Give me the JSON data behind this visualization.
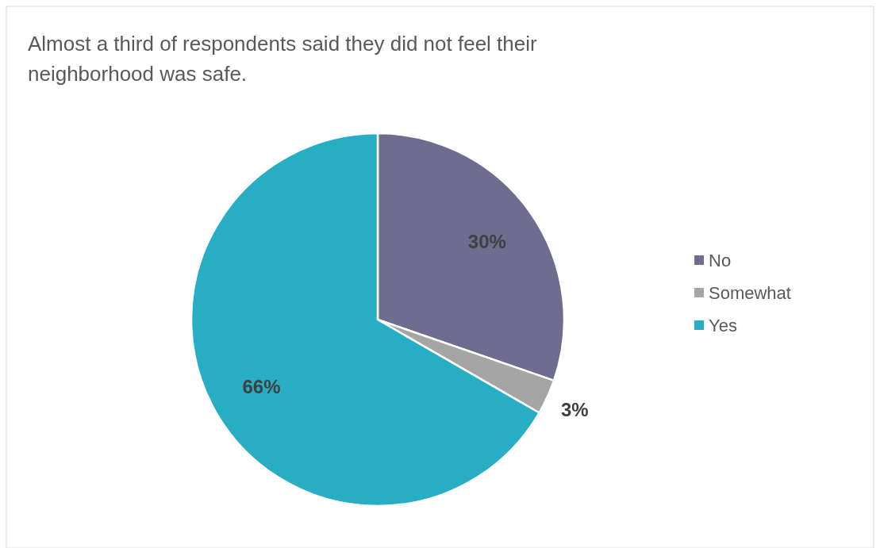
{
  "chart_data": {
    "type": "pie",
    "title": "Almost a third of respondents said they did not feel their neighborhood was safe.",
    "categories": [
      "No",
      "Somewhat",
      "Yes"
    ],
    "values": [
      30,
      3,
      66
    ],
    "colors": [
      "#6f6d8f",
      "#a5a5a5",
      "#27aec5"
    ],
    "value_labels": [
      "30%",
      "3%",
      "66%"
    ],
    "legend": "right"
  }
}
